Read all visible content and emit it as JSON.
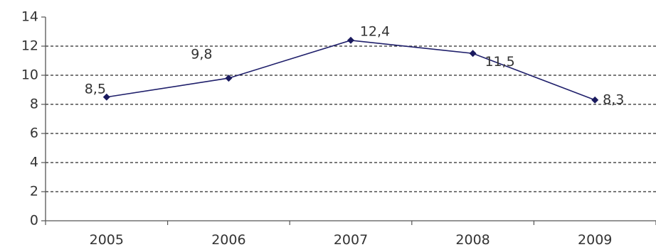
{
  "chart_data": {
    "type": "line",
    "categories": [
      "2005",
      "2006",
      "2007",
      "2008",
      "2009"
    ],
    "series": [
      {
        "values": [
          8.5,
          9.8,
          12.4,
          11.5,
          8.3
        ]
      }
    ],
    "data_labels": [
      "8,5",
      "9,8",
      "12,4",
      "11,5",
      "8,3"
    ],
    "y_ticks": [
      "0",
      "2",
      "4",
      "6",
      "8",
      "10",
      "12",
      "14"
    ],
    "ylim": [
      0,
      14
    ],
    "grid": "dashed horizontal",
    "legend": "none",
    "line_color": "#1f1f6b",
    "marker_color": "#1a1a5e"
  }
}
